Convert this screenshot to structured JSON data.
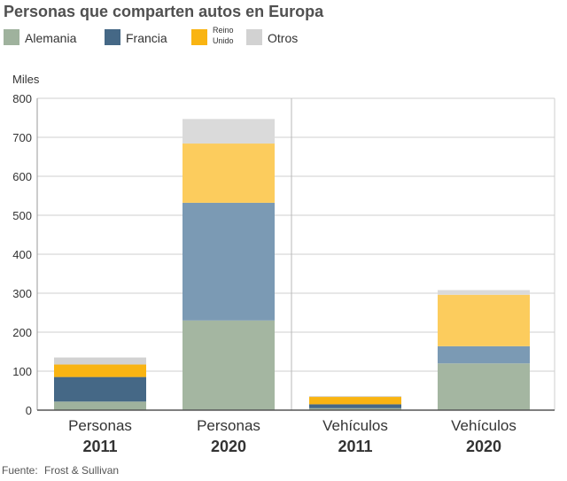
{
  "chart_data": {
    "type": "bar",
    "stacked": true,
    "title": "Personas que comparten autos en Europa",
    "ylabel": "Miles",
    "ylim": [
      0,
      800
    ],
    "yticks": [
      0,
      100,
      200,
      300,
      400,
      500,
      600,
      700,
      800
    ],
    "categories": [
      {
        "label": "Personas",
        "year": "2011"
      },
      {
        "label": "Personas",
        "year": "2020"
      },
      {
        "label": "Vehículos",
        "year": "2011"
      },
      {
        "label": "Vehículos",
        "year": "2020"
      }
    ],
    "series": [
      {
        "name": "Alemania",
        "colors": [
          "#9fb29d",
          "#a4b6a1",
          "#9fb29d",
          "#a4b6a1"
        ],
        "values": [
          22,
          230,
          5,
          120
        ]
      },
      {
        "name": "Francia",
        "colors": [
          "#456886",
          "#7b9ab4",
          "#456886",
          "#7b9ab4"
        ],
        "values": [
          63,
          302,
          10,
          44
        ]
      },
      {
        "name": "Reino Unido",
        "colors": [
          "#f9b412",
          "#fccc5d",
          "#f9b412",
          "#fccc5d"
        ],
        "values": [
          32,
          152,
          19,
          132
        ]
      },
      {
        "name": "Otros",
        "colors": [
          "#d2d2d2",
          "#dadada",
          "#d2d2d2",
          "#dadada"
        ],
        "values": [
          18,
          63,
          2,
          12
        ]
      }
    ],
    "legend_position": "top-left",
    "grid": true
  },
  "legend": [
    {
      "label": "Alemania",
      "color": "#9fb29d"
    },
    {
      "label": "Francia",
      "color": "#456886"
    },
    {
      "label": "Reino Unido",
      "color": "#f9b412"
    },
    {
      "label": "Otros",
      "color": "#d2d2d2"
    }
  ],
  "source": {
    "prefix": "Fuente:",
    "text": "Frost & Sullivan"
  }
}
